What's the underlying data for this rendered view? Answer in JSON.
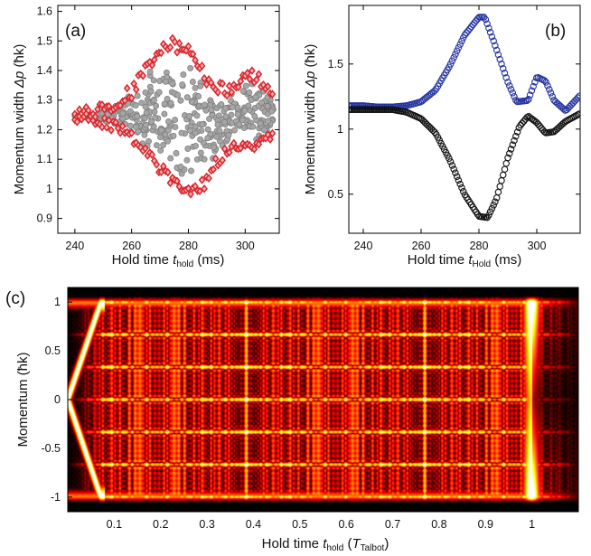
{
  "chart_data": [
    {
      "type": "scatter",
      "panel_label": "(a)",
      "xlabel_prefix": "Hold time ",
      "xlabel_var": "t",
      "xlabel_sub": "hold",
      "xlabel_suffix": " (ms)",
      "ylabel_prefix": "Momentum width ",
      "ylabel_var": "Δp",
      "ylabel_suffix": " (ħk)",
      "xlim": [
        234,
        312
      ],
      "ylim": [
        0.85,
        1.62
      ],
      "xticks": [
        "240",
        "260",
        "280",
        "300"
      ],
      "xtick_values": [
        240,
        260,
        280,
        300
      ],
      "yticks": [
        "0.9",
        "1",
        "1.1",
        "1.2",
        "1.3",
        "1.4",
        "1.5",
        "1.6"
      ],
      "ytick_values": [
        0.9,
        1.0,
        1.1,
        1.2,
        1.3,
        1.4,
        1.5,
        1.6
      ],
      "series": [
        {
          "name": "outer envelope",
          "marker": "diamond",
          "color": "#d9262e",
          "description": "upper and lower envelope of the distribution, 240-310 ms",
          "upper": [
            [
              240,
              1.27
            ],
            [
              250,
              1.29
            ],
            [
              260,
              1.35
            ],
            [
              266,
              1.44
            ],
            [
              270,
              1.5
            ],
            [
              274,
              1.51
            ],
            [
              278,
              1.5
            ],
            [
              282,
              1.47
            ],
            [
              286,
              1.4
            ],
            [
              290,
              1.36
            ],
            [
              295,
              1.36
            ],
            [
              300,
              1.4
            ],
            [
              304,
              1.4
            ],
            [
              308,
              1.36
            ],
            [
              310,
              1.33
            ]
          ],
          "lower": [
            [
              240,
              1.22
            ],
            [
              250,
              1.2
            ],
            [
              258,
              1.17
            ],
            [
              264,
              1.12
            ],
            [
              270,
              1.05
            ],
            [
              274,
              1.01
            ],
            [
              278,
              0.99
            ],
            [
              282,
              0.97
            ],
            [
              286,
              1.0
            ],
            [
              290,
              1.07
            ],
            [
              295,
              1.12
            ],
            [
              300,
              1.13
            ],
            [
              304,
              1.13
            ],
            [
              308,
              1.15
            ],
            [
              310,
              1.17
            ]
          ]
        },
        {
          "name": "inner points",
          "marker": "circle",
          "color": "#9b9b9b",
          "description": "filled spread between envelopes"
        }
      ]
    },
    {
      "type": "line",
      "panel_label": "(b)",
      "xlabel_prefix": "Hold time ",
      "xlabel_var": "t",
      "xlabel_sub": "Hold",
      "xlabel_suffix": " (ms)",
      "ylabel_prefix": "Momentum width ",
      "ylabel_var": "Δp",
      "ylabel_suffix": " (ħk)",
      "xlim": [
        235,
        315
      ],
      "ylim": [
        0.2,
        1.95
      ],
      "xticks": [
        "240",
        "260",
        "280",
        "300"
      ],
      "xtick_values": [
        240,
        260,
        280,
        300
      ],
      "yticks": [
        "0.5",
        "1",
        "1.5"
      ],
      "ytick_values": [
        0.5,
        1.0,
        1.5
      ],
      "series": [
        {
          "name": "upper branch",
          "marker": "open-circle",
          "color": "#2433a0",
          "x": [
            235,
            240,
            245,
            250,
            255,
            260,
            265,
            270,
            275,
            280,
            282,
            285,
            290,
            293,
            297,
            300,
            303,
            306,
            310,
            315
          ],
          "y": [
            1.18,
            1.18,
            1.17,
            1.17,
            1.18,
            1.21,
            1.3,
            1.49,
            1.72,
            1.86,
            1.86,
            1.68,
            1.36,
            1.21,
            1.22,
            1.4,
            1.37,
            1.22,
            1.14,
            1.26
          ]
        },
        {
          "name": "lower branch",
          "marker": "open-circle",
          "color": "#111111",
          "x": [
            235,
            240,
            245,
            250,
            255,
            260,
            265,
            270,
            275,
            280,
            283,
            286,
            290,
            294,
            297,
            300,
            303,
            306,
            310,
            315
          ],
          "y": [
            1.15,
            1.15,
            1.15,
            1.15,
            1.13,
            1.08,
            0.97,
            0.76,
            0.5,
            0.33,
            0.32,
            0.46,
            0.78,
            1.02,
            1.1,
            1.05,
            0.97,
            0.98,
            1.06,
            1.12
          ]
        }
      ]
    },
    {
      "type": "heatmap",
      "panel_label": "(c)",
      "xlabel_prefix": "Hold time ",
      "xlabel_var": "t",
      "xlabel_sub": "hold",
      "xlabel_mid": " (",
      "xlabel_var2": "T",
      "xlabel_sub2": "Talbot",
      "xlabel_suffix": ")",
      "ylabel": "Momentum (ħk)",
      "xlim": [
        0,
        1.1
      ],
      "ylim": [
        -1.15,
        1.15
      ],
      "xticks": [
        "0.1",
        "0.2",
        "0.3",
        "0.4",
        "0.5",
        "0.6",
        "0.7",
        "0.8",
        "0.9",
        "1"
      ],
      "xtick_values": [
        0.1,
        0.2,
        0.3,
        0.4,
        0.5,
        0.6,
        0.7,
        0.8,
        0.9,
        1.0
      ],
      "yticks": [
        "-1",
        "-0.5",
        "0",
        "0.5",
        "1"
      ],
      "ytick_values": [
        -1,
        -0.5,
        0,
        0.5,
        1
      ],
      "colormap": "hot"
    }
  ]
}
